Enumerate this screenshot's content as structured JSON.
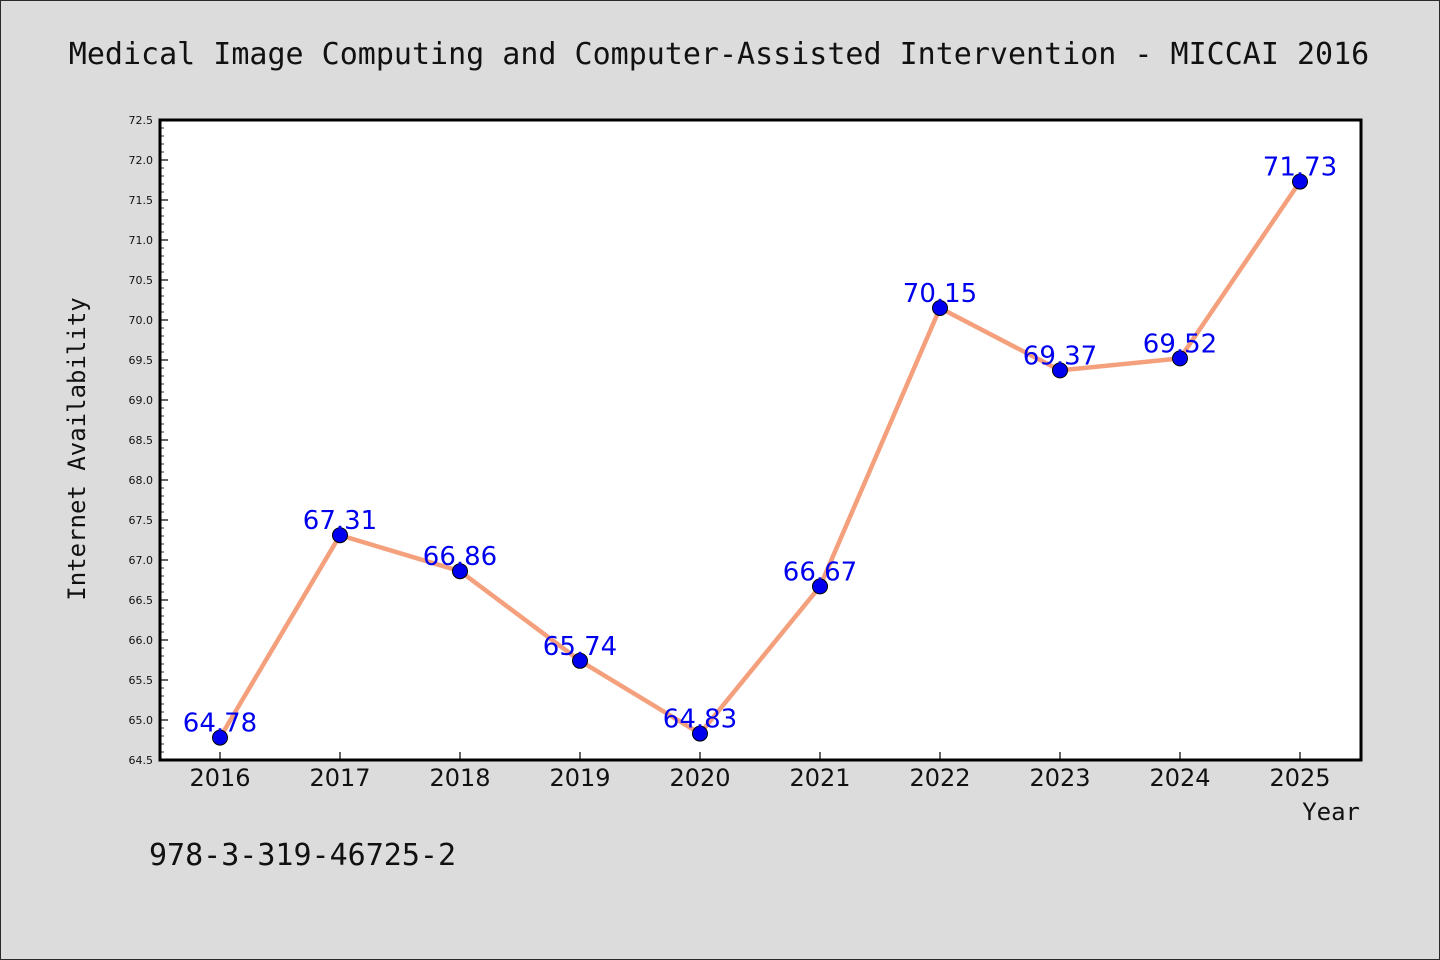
{
  "chart_data": {
    "type": "line",
    "title": "Medical Image Computing and Computer-Assisted Intervention - MICCAI 2016",
    "xlabel": "Year",
    "ylabel": "Internet Availability",
    "categories": [
      "2016",
      "2017",
      "2018",
      "2019",
      "2020",
      "2021",
      "2022",
      "2023",
      "2024",
      "2025"
    ],
    "values": [
      64.78,
      67.31,
      66.86,
      65.74,
      64.83,
      66.67,
      70.15,
      69.37,
      69.52,
      71.73
    ],
    "data_labels": [
      "64.78",
      "67.31",
      "66.86",
      "65.74",
      "64.83",
      "66.67",
      "70.15",
      "69.37",
      "69.52",
      "71.73"
    ],
    "ylim": [
      64.5,
      72.5
    ],
    "yticks": [
      "64.5",
      "65.0",
      "65.5",
      "66.0",
      "66.5",
      "67.0",
      "67.5",
      "68.0",
      "68.5",
      "69.0",
      "69.5",
      "70.0",
      "70.5",
      "71.0",
      "71.5",
      "72.0",
      "72.5"
    ],
    "grid": false,
    "legend": "none",
    "colors": {
      "line": "#f4a07c",
      "marker": "#0000ee",
      "label": "#0000ee",
      "background": "#dcdcdc",
      "plot_background": "#ffffff"
    }
  },
  "footnote": "978-3-319-46725-2"
}
